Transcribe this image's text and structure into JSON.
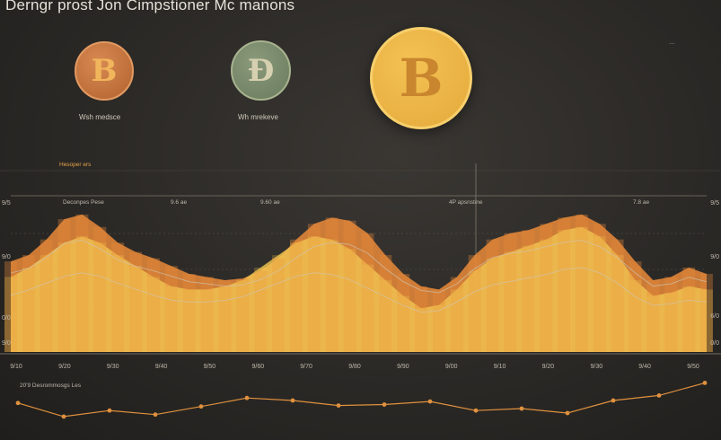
{
  "header": {
    "title": "Derngr prost Jon Cimpstioner Mc manons"
  },
  "coins": [
    {
      "symbol": "B",
      "label": "Wsh medsce",
      "color": "#c8743e"
    },
    {
      "symbol": "Đ",
      "label": "Wh mrekeve",
      "color": "#7b8b6c"
    },
    {
      "symbol": "B",
      "label": "",
      "color": "#eeb648"
    }
  ],
  "annotations": {
    "top_right": "…",
    "section_header": "Hesoper ers",
    "col_labels": [
      "Deconpes Pese",
      "9.6 ae",
      "9.60 ae",
      "4P apsnstine",
      "7.8 ae"
    ],
    "lower_label": "20'9 Desrommosgs Les"
  },
  "chart_data": [
    {
      "type": "area",
      "title": "",
      "x": [
        0,
        1,
        2,
        3,
        4,
        5,
        6,
        7,
        8,
        9,
        10,
        11,
        12,
        13,
        14,
        15,
        16,
        17,
        18,
        19,
        20,
        21,
        22,
        23,
        24,
        25,
        26,
        27,
        28,
        29,
        30,
        31,
        32,
        33,
        34,
        35,
        36,
        37,
        38,
        39
      ],
      "series": [
        {
          "name": "",
          "color": "#e9893a",
          "values": [
            58,
            62,
            72,
            85,
            88,
            80,
            70,
            64,
            60,
            55,
            50,
            48,
            46,
            47,
            52,
            60,
            72,
            82,
            86,
            84,
            76,
            62,
            50,
            42,
            40,
            48,
            62,
            72,
            76,
            78,
            82,
            86,
            88,
            82,
            72,
            58,
            46,
            48,
            54,
            50
          ]
        },
        {
          "name": "",
          "color": "#f2c651",
          "values": [
            48,
            54,
            62,
            70,
            74,
            70,
            62,
            55,
            48,
            42,
            40,
            40,
            42,
            46,
            54,
            62,
            70,
            74,
            72,
            66,
            56,
            46,
            36,
            28,
            30,
            40,
            52,
            60,
            64,
            68,
            72,
            78,
            80,
            74,
            62,
            46,
            36,
            38,
            42,
            40
          ]
        }
      ],
      "x_tick_labels": [
        "9/10",
        "9/20",
        "9/30",
        "9/40",
        "9/50",
        "9/60",
        "9/70",
        "9/80",
        "9/90",
        "9/00",
        "9/10",
        "9/20",
        "9/30",
        "9/40",
        "9/50"
      ],
      "y_tick_labels_left": [
        "9/5",
        "9/0",
        "0/0",
        "9/0"
      ],
      "y_tick_labels_right": [
        "9/5",
        "9/0",
        "6/0",
        "0/0"
      ],
      "ylim": [
        0,
        100
      ]
    },
    {
      "type": "line",
      "title": "",
      "x": [
        0,
        1,
        2,
        3,
        4,
        5,
        6,
        7,
        8,
        9,
        10,
        11,
        12,
        13,
        14,
        15
      ],
      "series": [
        {
          "name": "",
          "color": "#e0913e",
          "values": [
            45,
            18,
            30,
            22,
            38,
            55,
            50,
            40,
            42,
            48,
            30,
            34,
            25,
            50,
            60,
            85
          ]
        }
      ]
    }
  ]
}
